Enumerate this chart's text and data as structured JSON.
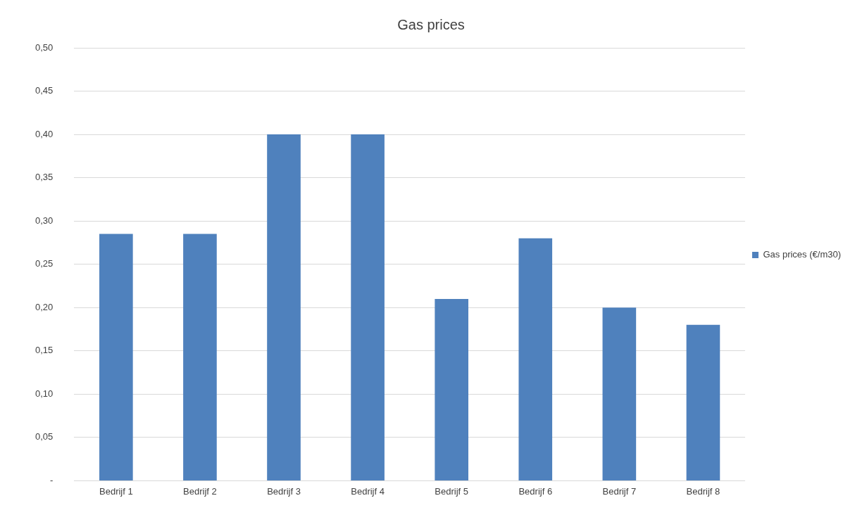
{
  "chart_data": {
    "type": "bar",
    "title": "Gas prices",
    "categories": [
      "Bedrijf 1",
      "Bedrijf 2",
      "Bedrijf 3",
      "Bedrijf 4",
      "Bedrijf 5",
      "Bedrijf 6",
      "Bedrijf 7",
      "Bedrijf 8"
    ],
    "series": [
      {
        "name": "Gas prices (€/m30)",
        "color": "#4f81bd",
        "values": [
          0.285,
          0.285,
          0.4,
          0.4,
          0.21,
          0.28,
          0.2,
          0.18
        ]
      }
    ],
    "ylim": [
      0,
      0.5
    ],
    "yticks": [
      {
        "value": 0,
        "label": "-"
      },
      {
        "value": 0.05,
        "label": "0,05"
      },
      {
        "value": 0.1,
        "label": "0,10"
      },
      {
        "value": 0.15,
        "label": "0,15"
      },
      {
        "value": 0.2,
        "label": "0,20"
      },
      {
        "value": 0.25,
        "label": "0,25"
      },
      {
        "value": 0.3,
        "label": "0,30"
      },
      {
        "value": 0.35,
        "label": "0,35"
      },
      {
        "value": 0.4,
        "label": "0,40"
      },
      {
        "value": 0.45,
        "label": "0,45"
      },
      {
        "value": 0.5,
        "label": "0,50"
      }
    ],
    "grid": "y",
    "legend": "right"
  }
}
